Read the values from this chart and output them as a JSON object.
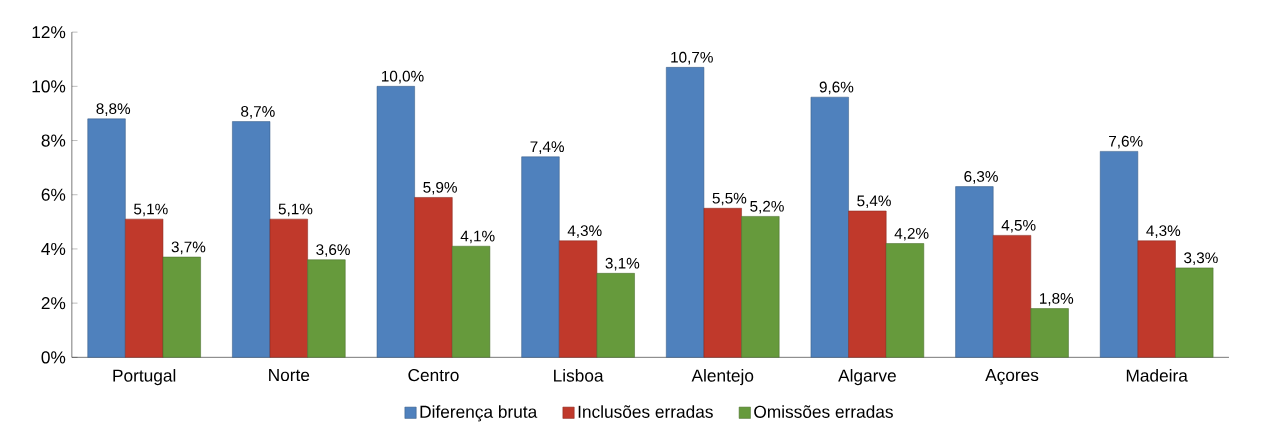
{
  "chart_data": {
    "type": "bar",
    "categories": [
      "Portugal",
      "Norte",
      "Centro",
      "Lisboa",
      "Alentejo",
      "Algarve",
      "Açores",
      "Madeira"
    ],
    "series": [
      {
        "name": "Diferença bruta",
        "color": "#4f81bd",
        "values": [
          8.8,
          8.7,
          10.0,
          7.4,
          10.7,
          9.6,
          6.3,
          7.6
        ],
        "value_labels": [
          "8,8%",
          "8,7%",
          "10,0%",
          "7,4%",
          "10,7%",
          "9,6%",
          "6,3%",
          "7,6%"
        ]
      },
      {
        "name": "Inclusões erradas",
        "color": "#c0392b",
        "values": [
          5.1,
          5.1,
          5.9,
          4.3,
          5.5,
          5.4,
          4.5,
          4.3
        ],
        "value_labels": [
          "5,1%",
          "5,1%",
          "5,9%",
          "4,3%",
          "5,5%",
          "5,4%",
          "4,5%",
          "4,3%"
        ]
      },
      {
        "name": "Omissões erradas",
        "color": "#669a3c",
        "values": [
          3.7,
          3.6,
          4.1,
          3.1,
          5.2,
          4.2,
          1.8,
          3.3
        ],
        "value_labels": [
          "3,7%",
          "3,6%",
          "4,1%",
          "3,1%",
          "5,2%",
          "4,2%",
          "1,8%",
          "3,3%"
        ]
      }
    ],
    "ylim": [
      0,
      12
    ],
    "yticks": [
      {
        "value": 0,
        "label": "0%"
      },
      {
        "value": 2,
        "label": "2%"
      },
      {
        "value": 4,
        "label": "4%"
      },
      {
        "value": 6,
        "label": "6%"
      },
      {
        "value": 8,
        "label": "8%"
      },
      {
        "value": 10,
        "label": "10%"
      },
      {
        "value": 12,
        "label": "12%"
      }
    ],
    "grid": false,
    "legend": "bottom"
  }
}
